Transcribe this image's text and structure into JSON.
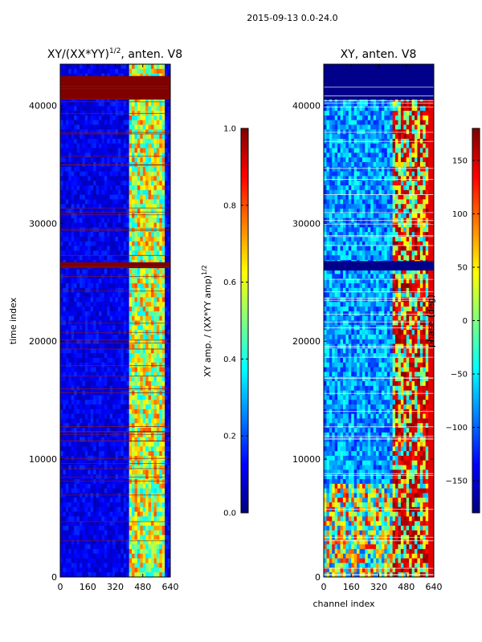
{
  "suptitle": "2015-09-13 0.0-24.0",
  "colors": {
    "jet": [
      "#00007f",
      "#0000ff",
      "#007fff",
      "#00ffff",
      "#7fff7f",
      "#ffff00",
      "#ff7f00",
      "#ff0000",
      "#7f0000"
    ],
    "flag_band": "#800000",
    "gap_line": "#ffffff"
  },
  "chart_data": [
    {
      "type": "heatmap",
      "title_main": "XY/(XX*YY)",
      "title_sup": "1/2",
      "title_tail": ", anten. V8",
      "xlabel": "",
      "ylabel": "time index",
      "xlim": [
        0,
        640
      ],
      "ylim": [
        0,
        43500
      ],
      "x_ticks": [
        "0",
        "160",
        "320",
        "480",
        "640"
      ],
      "y_ticks": [
        "0",
        "10000",
        "20000",
        "30000",
        "40000"
      ],
      "active_channel_range": [
        400,
        600
      ],
      "flagged_time_ranges": [
        [
          40500,
          42500
        ],
        [
          26200,
          26700
        ]
      ],
      "colorbar": {
        "label_main": "XY amp. / (XX*YY amp)",
        "label_sup": "1/2",
        "range": [
          0.0,
          1.0
        ],
        "ticks": [
          "0.0",
          "0.2",
          "0.4",
          "0.6",
          "0.8",
          "1.0"
        ]
      }
    },
    {
      "type": "heatmap",
      "title_main": "XY, anten. V8",
      "title_sup": "",
      "title_tail": "",
      "xlabel": "channel index",
      "ylabel": "",
      "xlim": [
        0,
        640
      ],
      "ylim": [
        0,
        43500
      ],
      "x_ticks": [
        "0",
        "160",
        "320",
        "480",
        "640"
      ],
      "y_ticks": [
        "0",
        "10000",
        "20000",
        "30000",
        "40000"
      ],
      "active_channel_range": [
        400,
        600
      ],
      "flagged_time_ranges": [
        [
          40500,
          43500
        ],
        [
          26000,
          26800
        ]
      ],
      "colorbar": {
        "label_main": "phase (deg)",
        "label_sup": "",
        "range": [
          -180,
          180
        ],
        "ticks": [
          "−150",
          "−100",
          "−50",
          "0",
          "50",
          "100",
          "150"
        ]
      }
    }
  ]
}
